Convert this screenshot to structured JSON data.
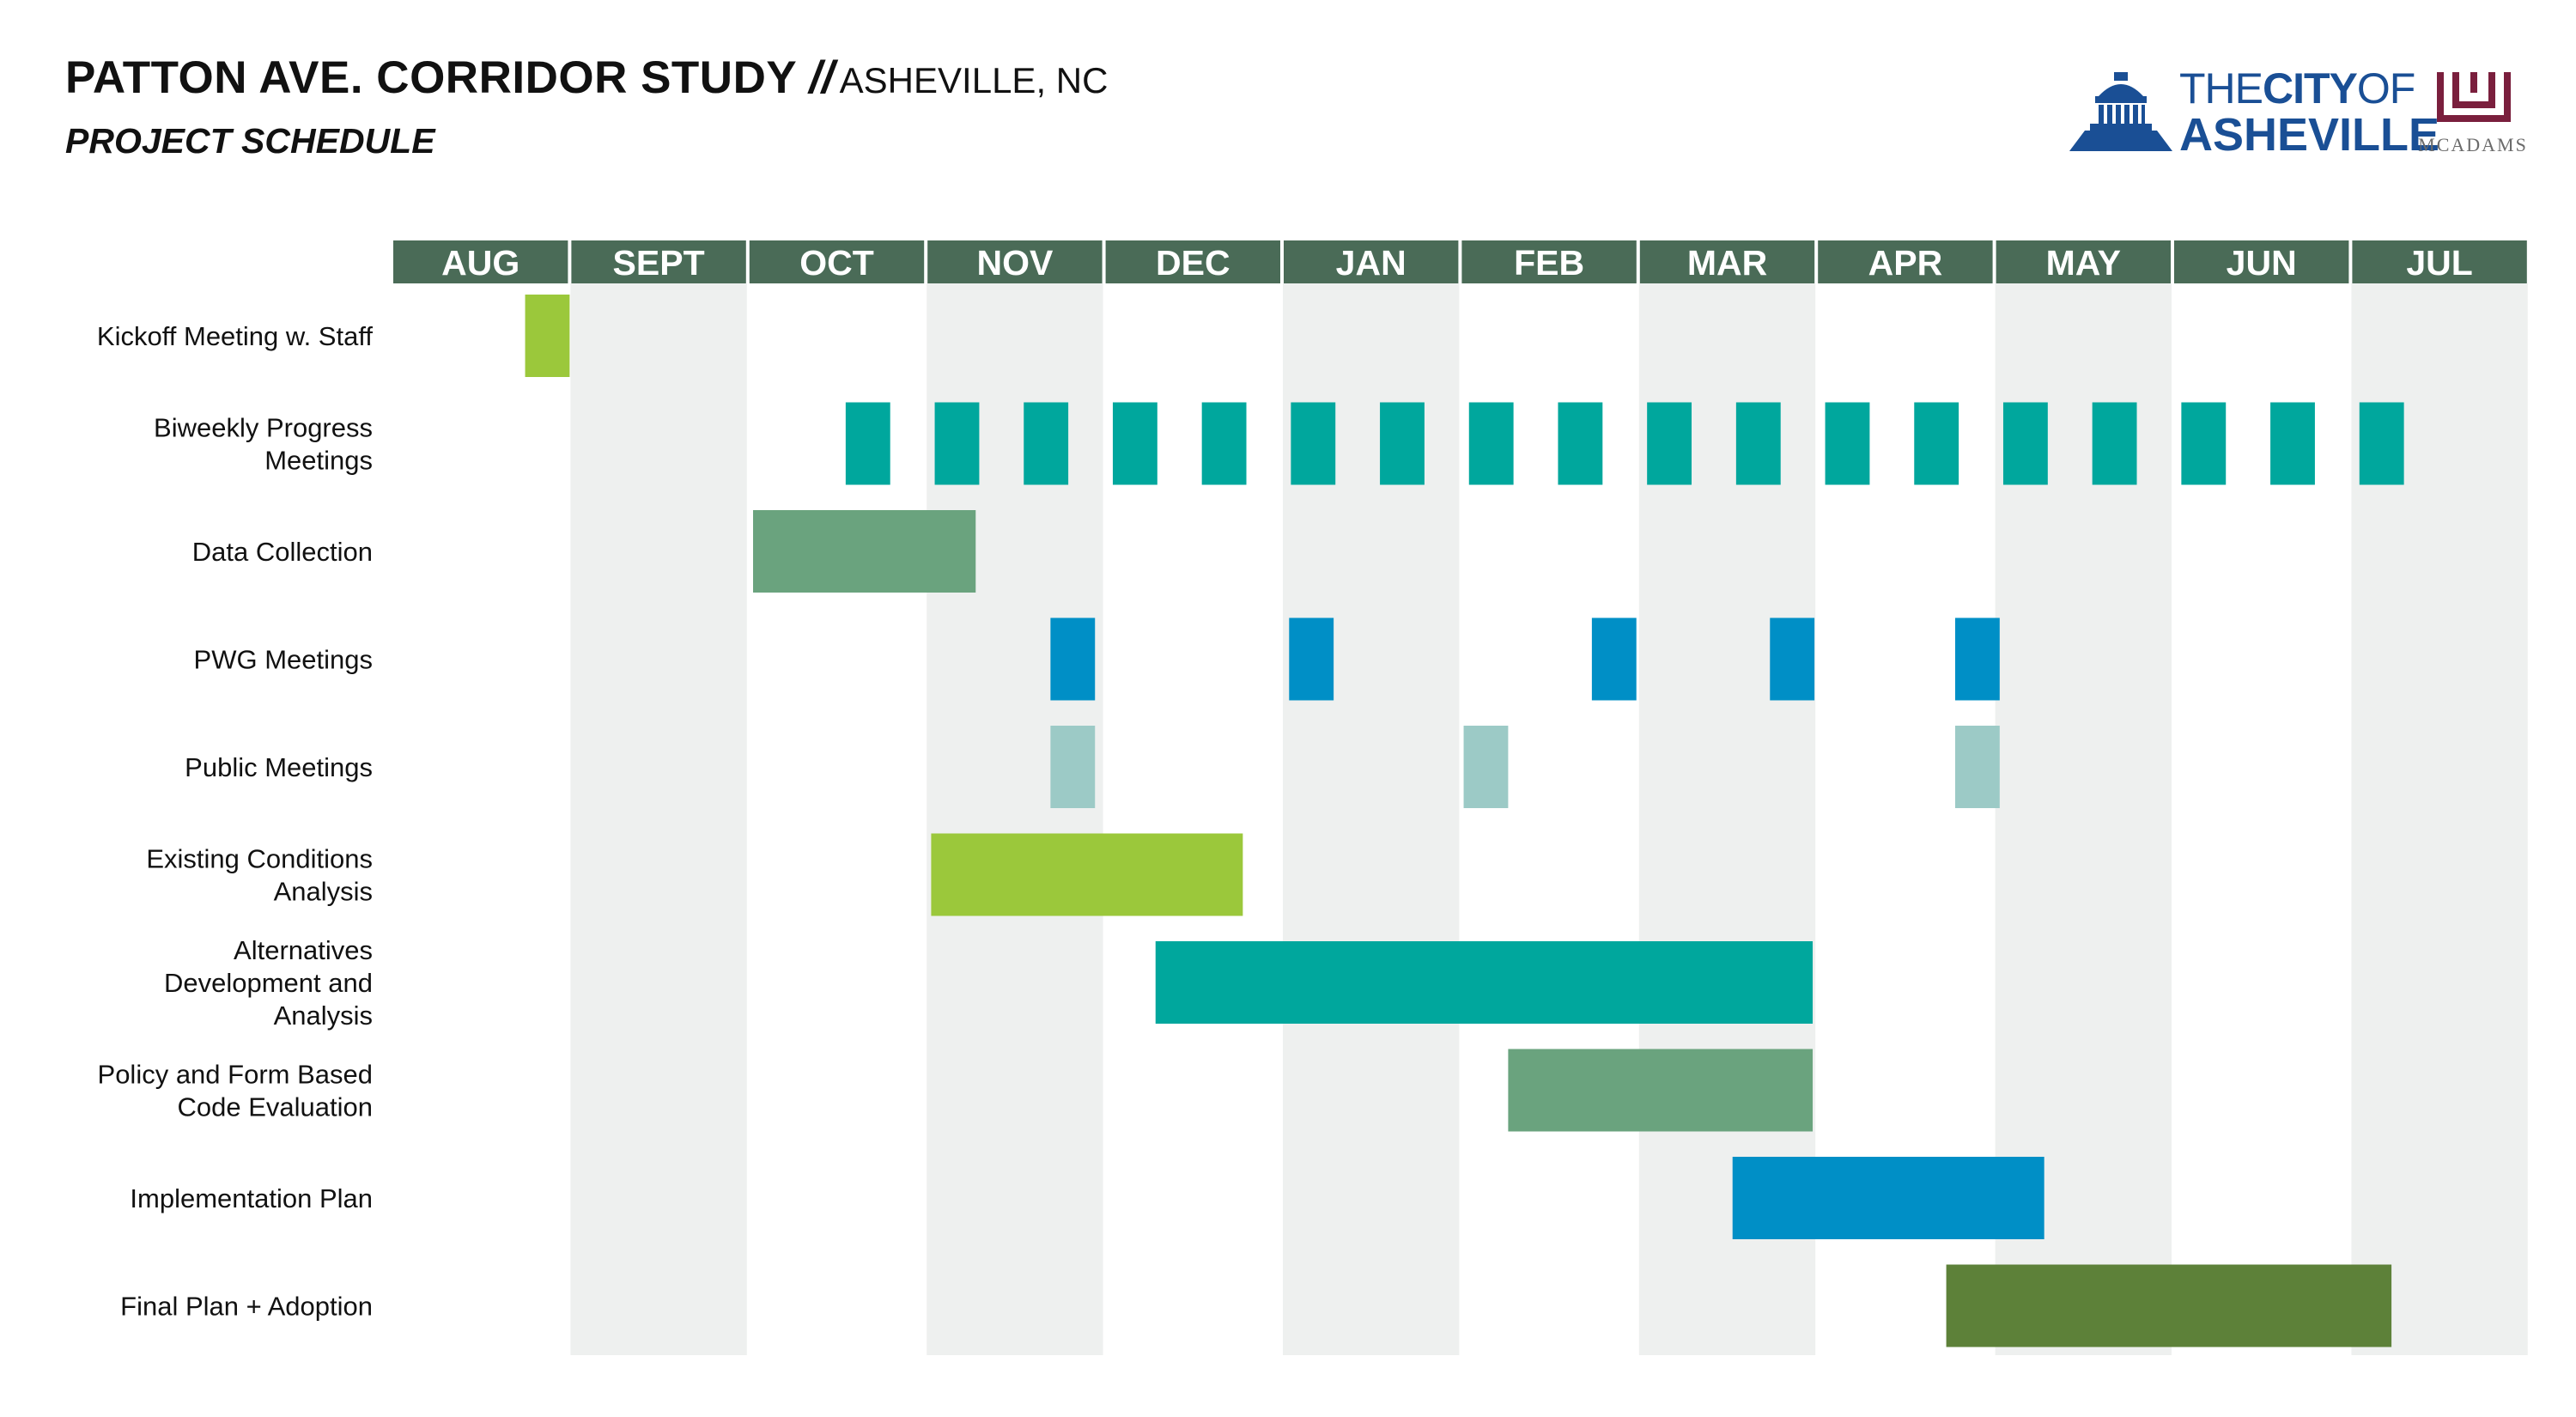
{
  "header": {
    "title": "PATTON AVE. CORRIDOR STUDY",
    "separator": "//",
    "location": "ASHEVILLE, NC",
    "subtitle": "PROJECT SCHEDULE"
  },
  "logos": {
    "city_prefix": "THE",
    "city_word": "CITY",
    "city_of": "OF",
    "city_name": "ASHEVILLE",
    "city_color": "#1a4f95",
    "firm_name": "MCADAMS",
    "firm_color": "#7a1f3d"
  },
  "chart_data": {
    "type": "gantt",
    "title": "PROJECT SCHEDULE",
    "months": [
      "AUG",
      "SEPT",
      "OCT",
      "NOV",
      "DEC",
      "JAN",
      "FEB",
      "MAR",
      "APR",
      "MAY",
      "JUN",
      "JUL"
    ],
    "colors": {
      "header": "#4a6b57",
      "shade": "#eef0ef",
      "lime": "#9bc83b",
      "teal": "#00a79d",
      "sage": "#6aa37e",
      "blue": "#008fc6",
      "pale": "#9ccac6",
      "olive": "#5d8139"
    },
    "tasks": [
      {
        "label": [
          "Kickoff Meeting w. Staff"
        ],
        "color": "lime",
        "bars": [
          [
            0.75,
            1.0
          ]
        ]
      },
      {
        "label": [
          "Biweekly Progress",
          "Meetings"
        ],
        "color": "teal",
        "bars": [
          [
            2.55,
            2.8
          ],
          [
            3.05,
            3.3
          ],
          [
            3.55,
            3.8
          ],
          [
            4.05,
            4.3
          ],
          [
            4.55,
            4.8
          ],
          [
            5.05,
            5.3
          ],
          [
            5.55,
            5.8
          ],
          [
            6.05,
            6.3
          ],
          [
            6.55,
            6.8
          ],
          [
            7.05,
            7.3
          ],
          [
            7.55,
            7.8
          ],
          [
            8.05,
            8.3
          ],
          [
            8.55,
            8.8
          ],
          [
            9.05,
            9.3
          ],
          [
            9.55,
            9.8
          ],
          [
            10.05,
            10.3
          ],
          [
            10.55,
            10.8
          ],
          [
            11.05,
            11.3
          ]
        ]
      },
      {
        "label": [
          "Data Collection"
        ],
        "color": "sage",
        "bars": [
          [
            2.03,
            3.28
          ]
        ]
      },
      {
        "label": [
          "PWG Meetings"
        ],
        "color": "blue",
        "bars": [
          [
            3.7,
            3.95
          ],
          [
            5.04,
            5.29
          ],
          [
            6.74,
            6.99
          ],
          [
            7.74,
            7.99
          ],
          [
            8.78,
            9.03
          ]
        ]
      },
      {
        "label": [
          "Public Meetings"
        ],
        "color": "pale",
        "bars": [
          [
            3.7,
            3.95
          ],
          [
            6.02,
            6.27
          ],
          [
            8.78,
            9.03
          ]
        ]
      },
      {
        "label": [
          "Existing Conditions",
          "Analysis"
        ],
        "color": "lime",
        "bars": [
          [
            3.03,
            4.78
          ]
        ]
      },
      {
        "label": [
          "Alternatives",
          "Development and",
          "Analysis"
        ],
        "color": "teal",
        "bars": [
          [
            4.29,
            7.98
          ]
        ]
      },
      {
        "label": [
          "Policy and Form Based",
          "Code Evaluation"
        ],
        "color": "sage",
        "bars": [
          [
            6.27,
            7.98
          ]
        ]
      },
      {
        "label": [
          "Implementation Plan"
        ],
        "color": "blue",
        "bars": [
          [
            7.53,
            9.28
          ]
        ]
      },
      {
        "label": [
          "Final Plan + Adoption"
        ],
        "color": "olive",
        "bars": [
          [
            8.73,
            11.23
          ]
        ]
      }
    ]
  }
}
